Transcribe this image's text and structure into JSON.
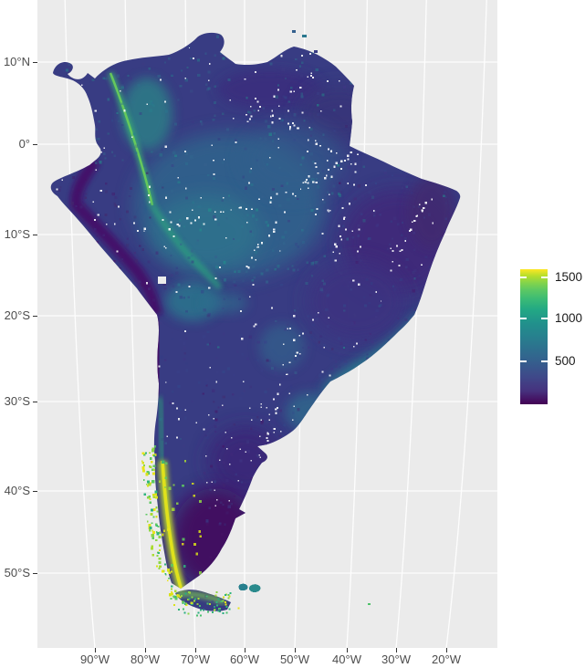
{
  "x_axis": {
    "labels": [
      "90°W",
      "80°W",
      "70°W",
      "60°W",
      "50°W",
      "40°W",
      "30°W",
      "20°W"
    ]
  },
  "y_axis": {
    "labels": [
      "10°N",
      "0°",
      "10°S",
      "20°S",
      "30°S",
      "40°S",
      "50°S"
    ]
  },
  "legend": {
    "tick_labels": [
      "1500",
      "1000",
      "500"
    ]
  },
  "colors": {
    "panel_background": "#EBEBEB",
    "grid": "#FFFFFF",
    "axis_text": "#4D4D4D",
    "legend_text": "#1A1A1A",
    "palette": "viridis",
    "viridis_min": "#440154",
    "viridis_max": "#FDE725"
  },
  "chart_data": {
    "type": "heatmap",
    "title": "",
    "geography": "South America raster map with curved graticule",
    "x_ticks": [
      "90°W",
      "80°W",
      "70°W",
      "60°W",
      "50°W",
      "40°W",
      "30°W",
      "20°W"
    ],
    "y_ticks": [
      "10°N",
      "0°",
      "10°S",
      "20°S",
      "30°S",
      "40°S",
      "50°S"
    ],
    "colorbar": {
      "ticks": [
        500,
        1000,
        1500
      ],
      "range_estimate": [
        0,
        1600
      ],
      "palette": "viridis",
      "orientation": "vertical",
      "position": "right"
    },
    "grid": true,
    "regions_approx_values": [
      {
        "region": "Andes (Colombia-Ecuador-Peru)",
        "approx_value": 900
      },
      {
        "region": "Amazon basin",
        "approx_value": 450
      },
      {
        "region": "Brazilian interior and northeast",
        "approx_value": 250
      },
      {
        "region": "Peru / north Chile coastal desert",
        "approx_value": 80
      },
      {
        "region": "Eastern Argentine Patagonia",
        "approx_value": 120
      },
      {
        "region": "Southern Chile / Patagonian Andes",
        "approx_value": 1450
      },
      {
        "region": "Southeast Brazil coast",
        "approx_value": 700
      },
      {
        "region": "Falkland Islands",
        "approx_value": 500
      }
    ]
  }
}
